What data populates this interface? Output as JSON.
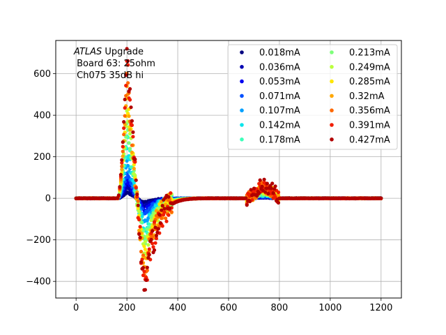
{
  "chart_data": {
    "type": "scatter",
    "title": "",
    "xlabel": "",
    "ylabel": "",
    "xlim": [
      -80,
      1280
    ],
    "ylim": [
      -480,
      760
    ],
    "xticks": [
      0,
      200,
      400,
      600,
      800,
      1000,
      1200
    ],
    "yticks": [
      -400,
      -200,
      0,
      200,
      400,
      600
    ],
    "grid": true,
    "legend_placement": "top-right",
    "legend_columns": 2,
    "annotation": {
      "line1_italic": "ATLAS",
      "line1_rest": " Upgrade",
      "line2": " Board 63: 25ohm",
      "line3": " Ch075 35dB hi"
    },
    "pulse_shape": {
      "baseline_until": 165,
      "peak_x": 200,
      "zero_cross_x": 240,
      "undershoot_min_x": 275,
      "recovery_end_x": 500,
      "second_bump_start_x": 670,
      "second_bump_peak_x": 720,
      "second_bump_end_x": 800,
      "x_end": 1200
    },
    "series": [
      {
        "name": "0.018mA",
        "color": "#000080",
        "peak": 30,
        "undershoot": -18,
        "bump": 3
      },
      {
        "name": "0.036mA",
        "color": "#0000b2",
        "peak": 60,
        "undershoot": -35,
        "bump": 6
      },
      {
        "name": "0.053mA",
        "color": "#0000f1",
        "peak": 90,
        "undershoot": -52,
        "bump": 9
      },
      {
        "name": "0.071mA",
        "color": "#0050ff",
        "peak": 120,
        "undershoot": -70,
        "bump": 11
      },
      {
        "name": "0.107mA",
        "color": "#00a0ff",
        "peak": 180,
        "undershoot": -105,
        "bump": 16
      },
      {
        "name": "0.142mA",
        "color": "#0ce5eb",
        "peak": 240,
        "undershoot": -140,
        "bump": 21
      },
      {
        "name": "0.178mA",
        "color": "#3dffba",
        "peak": 300,
        "undershoot": -175,
        "bump": 26
      },
      {
        "name": "0.213mA",
        "color": "#7dff7a",
        "peak": 360,
        "undershoot": -210,
        "bump": 31
      },
      {
        "name": "0.249mA",
        "color": "#baff3d",
        "peak": 420,
        "undershoot": -245,
        "bump": 36
      },
      {
        "name": "0.285mA",
        "color": "#ffe600",
        "peak": 480,
        "undershoot": -280,
        "bump": 41
      },
      {
        "name": "0.32mA",
        "color": "#ffa700",
        "peak": 540,
        "undershoot": -315,
        "bump": 46
      },
      {
        "name": "0.356mA",
        "color": "#ff6800",
        "peak": 600,
        "undershoot": -350,
        "bump": 52
      },
      {
        "name": "0.391mA",
        "color": "#f11d00",
        "peak": 660,
        "undershoot": -385,
        "bump": 57
      },
      {
        "name": "0.427mA",
        "color": "#b20000",
        "peak": 720,
        "undershoot": -405,
        "bump": 63
      }
    ]
  }
}
